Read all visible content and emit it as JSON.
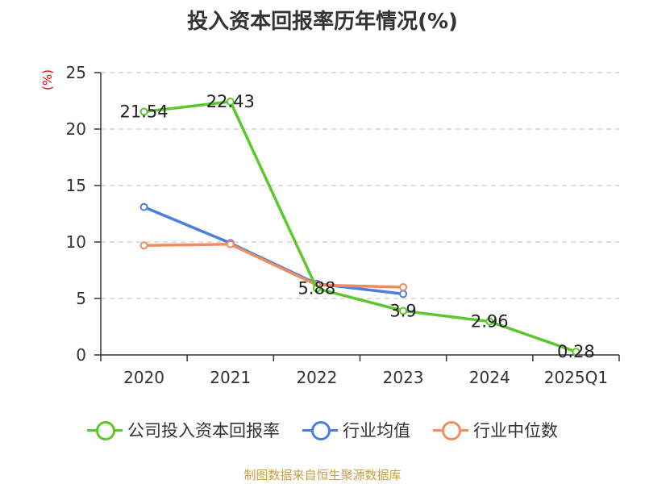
{
  "chart_data": {
    "type": "line",
    "title": "投入资本回报率历年情况(%)",
    "ylabel": "(%)",
    "categories": [
      "2020",
      "2021",
      "2022",
      "2023",
      "2024",
      "2025Q1"
    ],
    "ylim": [
      0,
      25
    ],
    "yticks": [
      0,
      5,
      10,
      15,
      20,
      25
    ],
    "grid": true,
    "legend_position": "bottom",
    "series": [
      {
        "name": "公司投入资本回报率",
        "color": "#5cc72e",
        "values": [
          21.54,
          22.43,
          5.88,
          3.9,
          2.96,
          0.28
        ],
        "labels": [
          "21.54",
          "22.43",
          "5.88",
          "3.9",
          "2.96",
          "0.28"
        ]
      },
      {
        "name": "行业均值",
        "color": "#4a7fe0",
        "values": [
          13.1,
          9.9,
          6.3,
          5.4,
          null,
          null
        ]
      },
      {
        "name": "行业中位数",
        "color": "#f28c5c",
        "values": [
          9.7,
          9.8,
          6.2,
          6.0,
          null,
          null
        ]
      }
    ]
  },
  "footer": "制图数据来自恒生聚源数据库"
}
